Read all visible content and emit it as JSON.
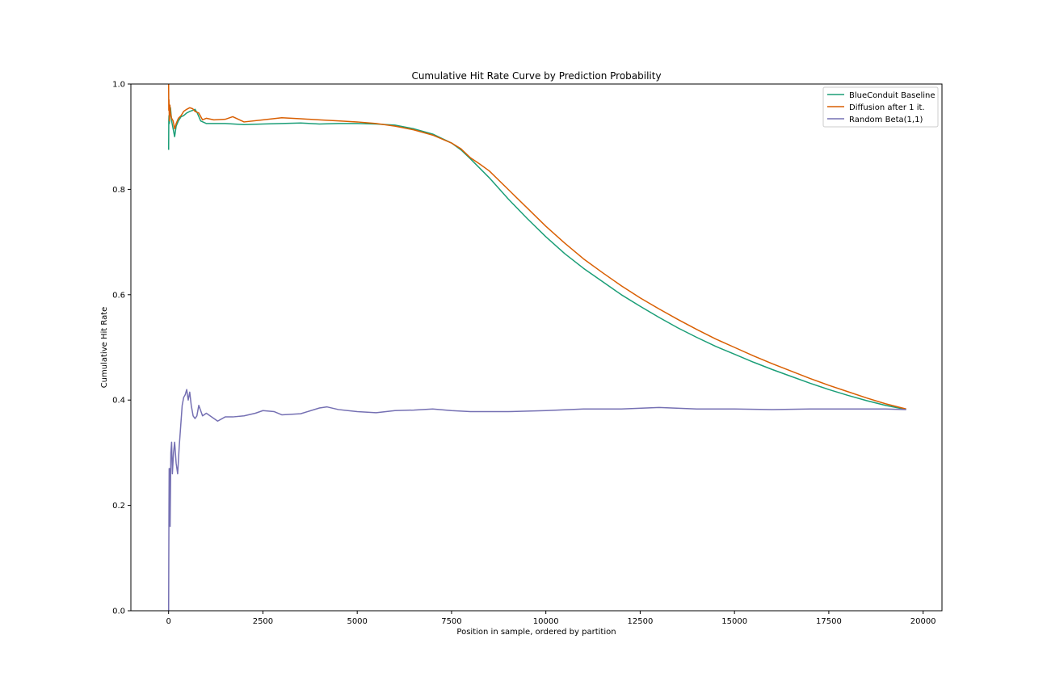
{
  "colors": {
    "baseline": "#1b9e77",
    "diffusion": "#d95f02",
    "random": "#7570b3",
    "axis": "#000000",
    "background": "#ffffff"
  },
  "chart_data": {
    "type": "line",
    "title": "Cumulative Hit Rate Curve by Prediction Probability",
    "xlabel": "Position in sample, ordered by partition",
    "ylabel": "Cumulative Hit Rate",
    "xlim": [
      -1000,
      20500
    ],
    "ylim": [
      0.0,
      1.0
    ],
    "xticks": [
      0,
      2500,
      5000,
      7500,
      10000,
      12500,
      15000,
      17500,
      20000
    ],
    "xtick_labels": [
      "0",
      "2500",
      "5000",
      "7500",
      "10000",
      "12500",
      "15000",
      "17500",
      "20000"
    ],
    "yticks": [
      0.0,
      0.2,
      0.4,
      0.6,
      0.8,
      1.0
    ],
    "ytick_labels": [
      "0.0",
      "0.2",
      "0.4",
      "0.6",
      "0.8",
      "1.0"
    ],
    "grid": false,
    "legend_position": "top-right",
    "series": [
      {
        "name": "BlueConduit Baseline",
        "color": "#1b9e77",
        "x": [
          1,
          5,
          10,
          20,
          35,
          50,
          80,
          120,
          160,
          200,
          260,
          330,
          400,
          480,
          560,
          640,
          700,
          760,
          850,
          1000,
          1200,
          1500,
          2000,
          2500,
          3000,
          3500,
          4000,
          4500,
          5000,
          5500,
          6000,
          6500,
          7000,
          7500,
          7750,
          8000,
          8500,
          9000,
          9500,
          10000,
          10500,
          11000,
          11500,
          12000,
          12500,
          13000,
          13500,
          14000,
          14500,
          15000,
          15500,
          16000,
          16500,
          17000,
          17500,
          18000,
          18500,
          19000,
          19550
        ],
        "y": [
          0.875,
          0.93,
          0.94,
          0.925,
          0.945,
          0.955,
          0.93,
          0.915,
          0.9,
          0.92,
          0.93,
          0.938,
          0.94,
          0.945,
          0.948,
          0.95,
          0.952,
          0.945,
          0.93,
          0.925,
          0.925,
          0.925,
          0.923,
          0.924,
          0.925,
          0.926,
          0.924,
          0.925,
          0.925,
          0.924,
          0.922,
          0.915,
          0.905,
          0.888,
          0.875,
          0.858,
          0.822,
          0.782,
          0.745,
          0.71,
          0.678,
          0.65,
          0.625,
          0.6,
          0.578,
          0.557,
          0.537,
          0.519,
          0.502,
          0.487,
          0.472,
          0.458,
          0.445,
          0.432,
          0.42,
          0.409,
          0.399,
          0.39,
          0.382
        ]
      },
      {
        "name": "Diffusion after 1 it.",
        "color": "#d95f02",
        "x": [
          1,
          5,
          10,
          20,
          35,
          50,
          80,
          120,
          160,
          200,
          260,
          330,
          400,
          480,
          560,
          640,
          700,
          800,
          900,
          1000,
          1200,
          1500,
          1700,
          2000,
          2500,
          3000,
          3500,
          4000,
          4500,
          5000,
          5500,
          6000,
          6500,
          7000,
          7500,
          7750,
          8000,
          8250,
          8500,
          9000,
          9500,
          10000,
          10500,
          11000,
          11500,
          12000,
          12500,
          13000,
          13500,
          14000,
          14500,
          15000,
          15500,
          16000,
          16500,
          17000,
          17500,
          18000,
          18500,
          19000,
          19550
        ],
        "y": [
          1.0,
          0.95,
          0.97,
          0.93,
          0.96,
          0.945,
          0.935,
          0.93,
          0.915,
          0.925,
          0.935,
          0.94,
          0.948,
          0.952,
          0.955,
          0.953,
          0.948,
          0.945,
          0.932,
          0.935,
          0.932,
          0.933,
          0.938,
          0.928,
          0.932,
          0.936,
          0.934,
          0.932,
          0.93,
          0.928,
          0.925,
          0.92,
          0.913,
          0.903,
          0.888,
          0.877,
          0.86,
          0.848,
          0.835,
          0.8,
          0.765,
          0.73,
          0.698,
          0.668,
          0.642,
          0.617,
          0.594,
          0.573,
          0.553,
          0.534,
          0.516,
          0.5,
          0.484,
          0.469,
          0.455,
          0.441,
          0.428,
          0.416,
          0.404,
          0.393,
          0.383
        ]
      },
      {
        "name": "Random Beta(1,1)",
        "color": "#7570b3",
        "x": [
          1,
          5,
          10,
          15,
          20,
          30,
          40,
          60,
          80,
          100,
          130,
          160,
          200,
          240,
          280,
          320,
          360,
          400,
          440,
          480,
          520,
          560,
          600,
          650,
          700,
          750,
          800,
          850,
          900,
          1000,
          1100,
          1200,
          1300,
          1500,
          1700,
          2000,
          2300,
          2500,
          2800,
          3000,
          3500,
          4000,
          4200,
          4500,
          5000,
          5500,
          6000,
          6500,
          7000,
          7500,
          8000,
          9000,
          10000,
          11000,
          12000,
          13000,
          14000,
          15000,
          16000,
          17000,
          18000,
          19000,
          19550
        ],
        "y": [
          0.0,
          0.1,
          0.2,
          0.27,
          0.23,
          0.27,
          0.16,
          0.3,
          0.32,
          0.26,
          0.3,
          0.32,
          0.28,
          0.26,
          0.31,
          0.35,
          0.39,
          0.405,
          0.41,
          0.42,
          0.4,
          0.415,
          0.39,
          0.37,
          0.365,
          0.37,
          0.39,
          0.38,
          0.37,
          0.375,
          0.37,
          0.365,
          0.36,
          0.368,
          0.368,
          0.37,
          0.375,
          0.38,
          0.378,
          0.372,
          0.374,
          0.385,
          0.387,
          0.382,
          0.378,
          0.376,
          0.38,
          0.381,
          0.383,
          0.38,
          0.378,
          0.378,
          0.38,
          0.383,
          0.383,
          0.386,
          0.383,
          0.383,
          0.382,
          0.383,
          0.383,
          0.383,
          0.382
        ]
      }
    ]
  }
}
